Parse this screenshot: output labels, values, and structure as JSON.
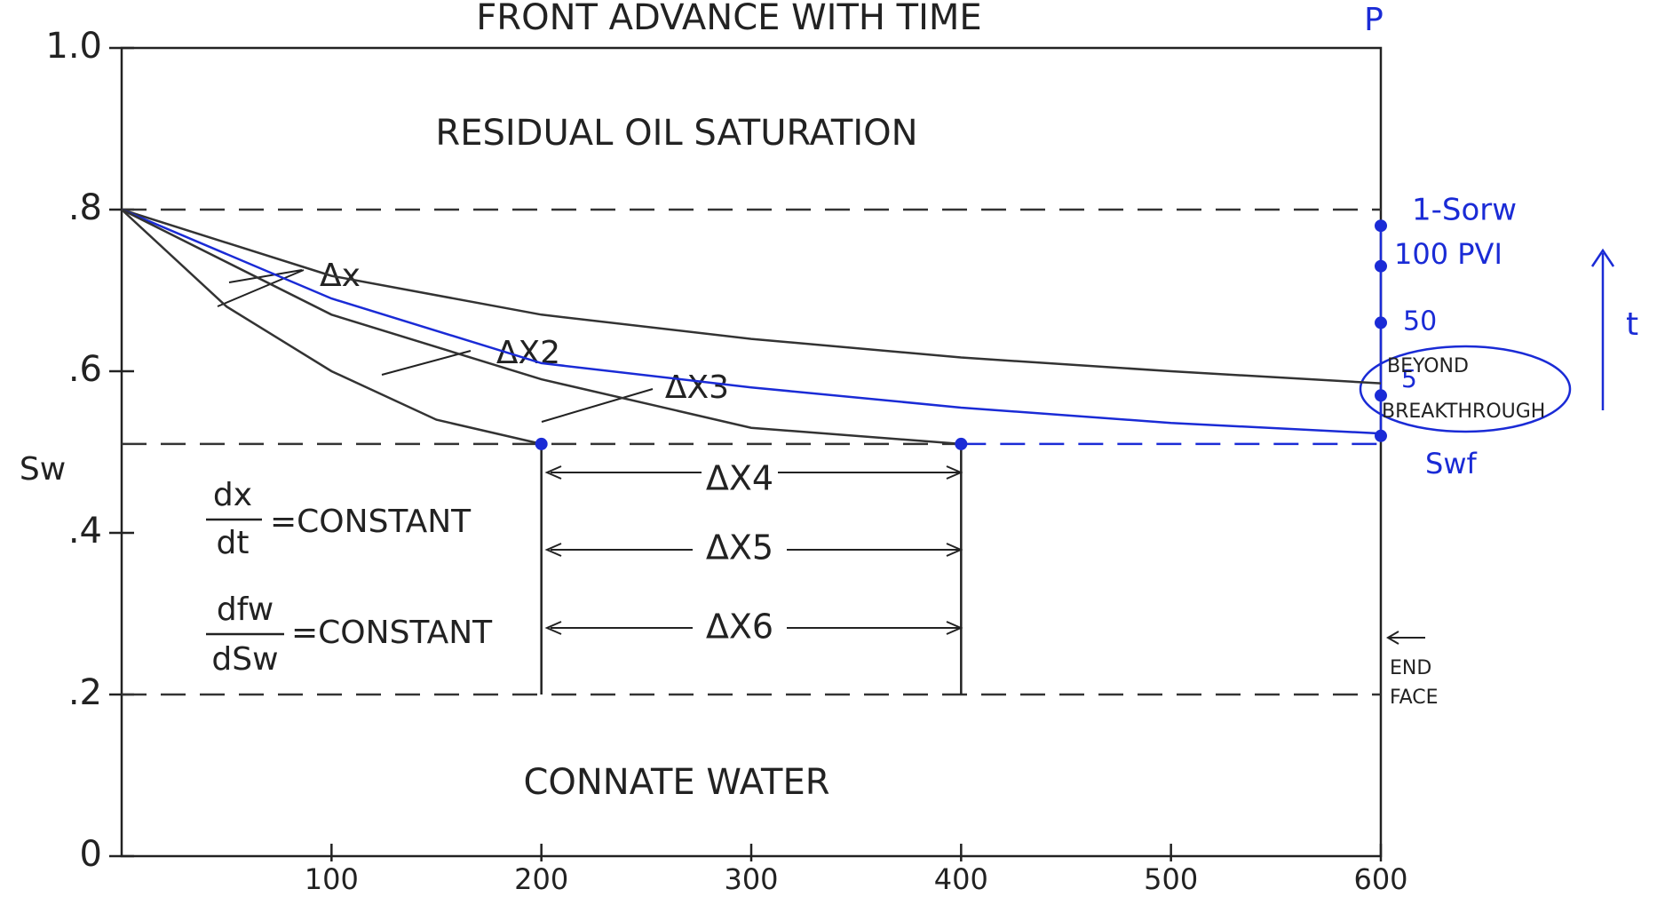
{
  "chart_data": {
    "type": "line",
    "title": "FRONT ADVANCE WITH TIME",
    "y_label": "Sw",
    "xlim": [
      0,
      600
    ],
    "xticks": [
      100,
      200,
      300,
      400,
      500,
      600
    ],
    "ylim": [
      0,
      1
    ],
    "yticks": [
      0,
      {
        "value": 0.2,
        "label": ".2"
      },
      {
        "value": 0.4,
        "label": ".4"
      },
      {
        "value": 0.6,
        "label": ".6"
      },
      {
        "value": 0.8,
        "label": ".8"
      },
      {
        "value": 1,
        "label": "1.0"
      }
    ],
    "series": [
      {
        "color": "#333333",
        "x": [
          0,
          100,
          200,
          300,
          400,
          500,
          600
        ],
        "values": [
          0.8,
          0.718,
          0.67,
          0.64,
          0.617,
          0.6,
          0.585
        ]
      },
      {
        "color": "#1a2bd6",
        "x": [
          0,
          100,
          200,
          300,
          400,
          500,
          600
        ],
        "values": [
          0.8,
          0.69,
          0.61,
          0.58,
          0.555,
          0.536,
          0.523
        ]
      },
      {
        "color": "#333333",
        "x": [
          0,
          100,
          200,
          300,
          400
        ],
        "values": [
          0.8,
          0.67,
          0.59,
          0.53,
          0.51
        ]
      },
      {
        "color": "#333333",
        "x": [
          0,
          50,
          100,
          150,
          200
        ],
        "values": [
          0.8,
          0.68,
          0.6,
          0.54,
          0.51
        ]
      }
    ],
    "reference_lines": [
      {
        "y": 0.8,
        "from": 0,
        "to": 600,
        "color": "#333333"
      },
      {
        "y": 0.51,
        "from": 0,
        "to": 400,
        "color": "#333333"
      },
      {
        "y": 0.51,
        "from": 400,
        "to": 600,
        "color": "#1a2bd6"
      },
      {
        "y": 0.2,
        "from": 0,
        "to": 600,
        "color": "#333333"
      }
    ],
    "vertical_lines": [
      {
        "x": 200,
        "from": 0.2,
        "to": 0.51
      },
      {
        "x": 400,
        "from": 0.2,
        "to": 0.51
      }
    ],
    "points": {
      "color": "#1a2bd6",
      "x": [
        200,
        400,
        600,
        600,
        600,
        600,
        600
      ],
      "values": [
        0.51,
        0.51,
        0.78,
        0.73,
        0.66,
        0.57,
        0.52
      ]
    },
    "annotations": {
      "residual": "RESIDUAL OIL SATURATION",
      "connate": "CONNATE WATER",
      "dx1": "Δx",
      "dx2": "ΔX2",
      "dx3": "ΔX3",
      "dx4": "ΔX4",
      "dx5": "ΔX5",
      "dx6": "ΔX6",
      "dx_num": "dx",
      "dx_den": "dt",
      "constant1": "=CONSTANT",
      "dfw_num": "dfw",
      "dfw_den": "dSw",
      "constant2": "=CONSTANT",
      "p": "P",
      "sorw": "1-Sorw",
      "pvi100": "100 PVI",
      "pvi50": "50",
      "pvi5": "5",
      "beyond": "BEYOND",
      "breakthrough": "BREAKTHROUGH",
      "swf": "Swf",
      "t": "t",
      "end": "END",
      "face": "FACE"
    }
  }
}
